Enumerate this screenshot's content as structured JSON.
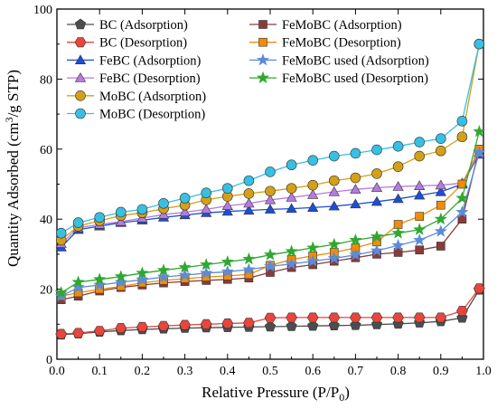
{
  "chart_data": {
    "type": "line",
    "title": "",
    "xlabel": "Relative Pressure (P/P",
    "xlabel_subscript": "0",
    "xlabel_close": ")",
    "ylabel": "Quantity Adsorbed (cm",
    "ylabel_superscript": "3",
    "ylabel_tail": "/g STP)",
    "xlim": [
      0.0,
      1.0
    ],
    "ylim": [
      0,
      100
    ],
    "x_ticks": [
      "0.0",
      "0.1",
      "0.2",
      "0.3",
      "0.4",
      "0.5",
      "0.6",
      "0.7",
      "0.8",
      "0.9",
      "1.0"
    ],
    "y_ticks": [
      "0",
      "20",
      "40",
      "60",
      "80",
      "100"
    ],
    "grid": false,
    "legend_placement": "top, two columns",
    "series": [
      {
        "name": "BC (Adsorption)",
        "color": "#4d4d4d",
        "marker": "pentagon",
        "x": [
          0.01,
          0.05,
          0.1,
          0.15,
          0.2,
          0.25,
          0.3,
          0.35,
          0.4,
          0.45,
          0.5,
          0.55,
          0.6,
          0.65,
          0.7,
          0.75,
          0.8,
          0.85,
          0.9,
          0.95,
          0.99
        ],
        "y": [
          7.0,
          7.3,
          7.8,
          8.2,
          8.5,
          8.7,
          8.9,
          9.0,
          9.1,
          9.2,
          9.3,
          9.4,
          9.5,
          9.6,
          9.7,
          9.9,
          10.1,
          10.4,
          10.8,
          11.8,
          19.8
        ]
      },
      {
        "name": "BC (Desorption)",
        "color": "#e8453c",
        "marker": "hexagon",
        "x": [
          0.01,
          0.05,
          0.1,
          0.15,
          0.2,
          0.25,
          0.3,
          0.35,
          0.4,
          0.45,
          0.5,
          0.55,
          0.6,
          0.65,
          0.7,
          0.75,
          0.8,
          0.85,
          0.9,
          0.95,
          0.99
        ],
        "y": [
          7.2,
          7.5,
          8.1,
          8.9,
          9.2,
          9.5,
          9.8,
          10.0,
          10.2,
          10.4,
          11.8,
          11.9,
          11.9,
          11.9,
          11.9,
          11.9,
          11.9,
          11.9,
          11.9,
          13.8,
          20.2
        ]
      },
      {
        "name": "FeBC (Adsorption)",
        "color": "#1c4fd6",
        "marker": "triangle",
        "x": [
          0.01,
          0.05,
          0.1,
          0.15,
          0.2,
          0.25,
          0.3,
          0.35,
          0.4,
          0.45,
          0.5,
          0.55,
          0.6,
          0.65,
          0.7,
          0.75,
          0.8,
          0.85,
          0.9,
          0.95,
          0.99
        ],
        "y": [
          32.0,
          37.0,
          38.0,
          39.0,
          39.7,
          40.5,
          41.2,
          41.8,
          42.2,
          42.5,
          42.8,
          43.0,
          43.3,
          43.7,
          44.3,
          45.0,
          45.8,
          46.8,
          47.8,
          50.0,
          58.5
        ]
      },
      {
        "name": "FeBC (Desorption)",
        "color": "#b57be0",
        "marker": "triangle",
        "x": [
          0.01,
          0.05,
          0.1,
          0.15,
          0.2,
          0.25,
          0.3,
          0.35,
          0.4,
          0.45,
          0.5,
          0.55,
          0.6,
          0.65,
          0.7,
          0.75,
          0.8,
          0.85,
          0.9,
          0.95,
          0.99
        ],
        "y": [
          33.0,
          37.5,
          38.5,
          39.3,
          40.3,
          41.3,
          42.0,
          42.8,
          43.8,
          44.5,
          45.5,
          46.2,
          47.0,
          47.8,
          48.5,
          49.0,
          49.3,
          49.5,
          49.7,
          50.3,
          59.0
        ]
      },
      {
        "name": "MoBC (Adsorption)",
        "color": "#d4a017",
        "marker": "circle",
        "x": [
          0.01,
          0.05,
          0.1,
          0.15,
          0.2,
          0.25,
          0.3,
          0.35,
          0.4,
          0.45,
          0.5,
          0.55,
          0.6,
          0.65,
          0.7,
          0.75,
          0.8,
          0.85,
          0.9,
          0.95,
          0.99
        ],
        "y": [
          34.0,
          38.0,
          39.5,
          41.0,
          41.8,
          43.0,
          44.0,
          45.5,
          46.5,
          47.3,
          48.0,
          48.8,
          49.7,
          51.0,
          51.8,
          53.0,
          55.0,
          58.0,
          59.5,
          63.5,
          90.0
        ]
      },
      {
        "name": "MoBC (Desorption)",
        "color": "#36c0e3",
        "marker": "circle",
        "x": [
          0.01,
          0.05,
          0.1,
          0.15,
          0.2,
          0.25,
          0.3,
          0.35,
          0.4,
          0.45,
          0.5,
          0.55,
          0.6,
          0.65,
          0.7,
          0.75,
          0.8,
          0.85,
          0.9,
          0.95,
          0.99
        ],
        "y": [
          36.0,
          39.0,
          40.5,
          42.0,
          42.8,
          44.5,
          46.0,
          47.5,
          48.8,
          51.0,
          53.5,
          55.5,
          56.8,
          58.0,
          58.8,
          59.8,
          60.8,
          62.0,
          63.0,
          68.0,
          90.0
        ]
      },
      {
        "name": "FeMoBC (Adsorption)",
        "color": "#8b3a3a",
        "marker": "square",
        "x": [
          0.01,
          0.05,
          0.1,
          0.15,
          0.2,
          0.25,
          0.3,
          0.35,
          0.4,
          0.45,
          0.5,
          0.55,
          0.6,
          0.65,
          0.7,
          0.75,
          0.8,
          0.85,
          0.9,
          0.95,
          0.99
        ],
        "y": [
          17.0,
          18.0,
          19.5,
          20.5,
          21.2,
          21.8,
          22.2,
          22.5,
          22.8,
          23.2,
          24.8,
          26.2,
          27.0,
          28.0,
          29.0,
          30.0,
          30.5,
          31.2,
          32.3,
          40.0,
          60.0
        ]
      },
      {
        "name": "FeMoBC (Desorption)",
        "color": "#f08c0a",
        "marker": "square",
        "x": [
          0.01,
          0.05,
          0.1,
          0.15,
          0.2,
          0.25,
          0.3,
          0.35,
          0.4,
          0.45,
          0.5,
          0.55,
          0.6,
          0.65,
          0.7,
          0.75,
          0.8,
          0.85,
          0.9,
          0.95,
          0.99
        ],
        "y": [
          18.0,
          19.0,
          20.0,
          20.8,
          21.8,
          22.5,
          23.0,
          23.5,
          23.8,
          24.2,
          26.8,
          28.5,
          29.5,
          30.5,
          31.8,
          33.5,
          38.5,
          40.8,
          44.0,
          50.0,
          60.0
        ]
      },
      {
        "name": "FeMoBC used (Adsorption)",
        "color": "#5b8bd9",
        "marker": "star",
        "x": [
          0.01,
          0.05,
          0.1,
          0.15,
          0.2,
          0.25,
          0.3,
          0.35,
          0.4,
          0.45,
          0.5,
          0.55,
          0.6,
          0.65,
          0.7,
          0.75,
          0.8,
          0.85,
          0.9,
          0.95,
          0.99
        ],
        "y": [
          18.0,
          20.5,
          21.2,
          22.0,
          22.7,
          23.5,
          24.0,
          24.6,
          25.0,
          25.6,
          26.5,
          27.2,
          28.0,
          28.8,
          29.8,
          31.0,
          32.5,
          34.0,
          36.5,
          42.0,
          59.0
        ]
      },
      {
        "name": "FeMoBC used (Desorption)",
        "color": "#2ea82e",
        "marker": "star",
        "x": [
          0.01,
          0.05,
          0.1,
          0.15,
          0.2,
          0.25,
          0.3,
          0.35,
          0.4,
          0.45,
          0.5,
          0.55,
          0.6,
          0.65,
          0.7,
          0.75,
          0.8,
          0.85,
          0.9,
          0.95,
          0.99
        ],
        "y": [
          19.0,
          22.0,
          22.8,
          23.6,
          24.6,
          25.4,
          26.2,
          27.0,
          27.8,
          28.6,
          29.8,
          30.8,
          31.8,
          32.8,
          34.0,
          35.0,
          36.0,
          37.0,
          40.0,
          46.0,
          65.0
        ]
      }
    ]
  }
}
